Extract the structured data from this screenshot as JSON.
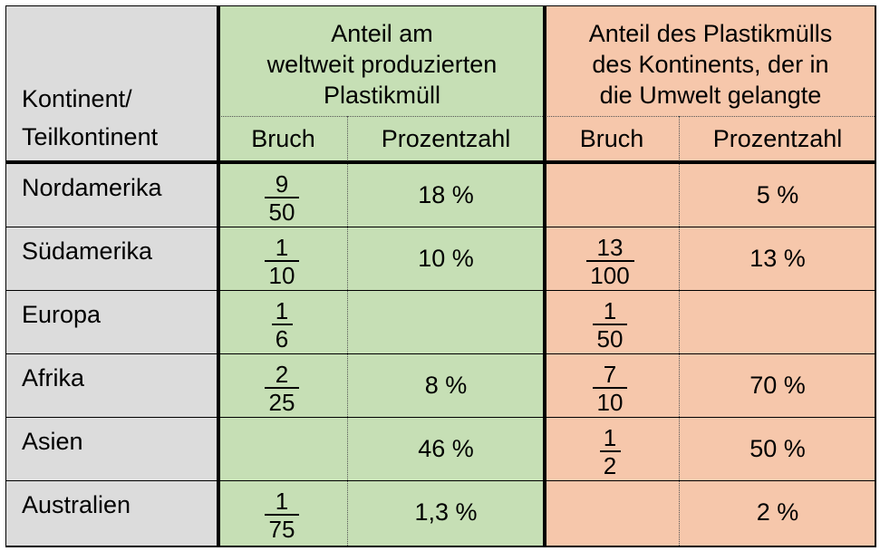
{
  "header": {
    "col1": [
      "Kontinent/",
      "Teilkontinent"
    ],
    "group_world": [
      "Anteil am",
      "weltweit produzierten",
      "Plastikmüll"
    ],
    "group_env": [
      "Anteil des Plastikmülls",
      "des Kontinents, der in",
      "die Umwelt gelangte"
    ],
    "sub_bruch": "Bruch",
    "sub_prozent": "Prozentzahl"
  },
  "rows": [
    {
      "name": "Nordamerika",
      "w_num": "9",
      "w_den": "50",
      "w_pct": "18 %",
      "e_num": "",
      "e_den": "",
      "e_pct": "5 %"
    },
    {
      "name": "Südamerika",
      "w_num": "1",
      "w_den": "10",
      "w_pct": "10 %",
      "e_num": "13",
      "e_den": "100",
      "e_pct": "13 %"
    },
    {
      "name": "Europa",
      "w_num": "1",
      "w_den": "6",
      "w_pct": "",
      "e_num": "1",
      "e_den": "50",
      "e_pct": ""
    },
    {
      "name": "Afrika",
      "w_num": "2",
      "w_den": "25",
      "w_pct": "8 %",
      "e_num": "7",
      "e_den": "10",
      "e_pct": "70 %"
    },
    {
      "name": "Asien",
      "w_num": "",
      "w_den": "",
      "w_pct": "46 %",
      "e_num": "1",
      "e_den": "2",
      "e_pct": "50 %"
    },
    {
      "name": "Australien",
      "w_num": "1",
      "w_den": "75",
      "w_pct": "1,3 %",
      "e_num": "",
      "e_den": "",
      "e_pct": "2 %"
    }
  ],
  "colors": {
    "gray": "#dcdcdc",
    "green": "#c6dfb5",
    "salmon": "#f6c7ab"
  }
}
